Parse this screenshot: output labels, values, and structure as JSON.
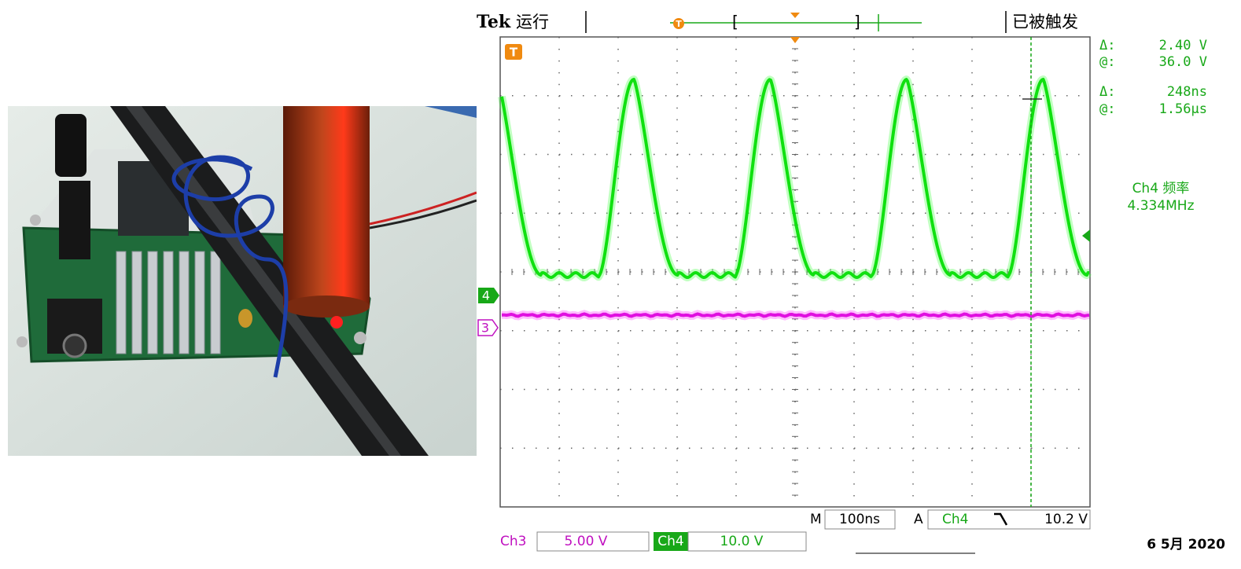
{
  "header": {
    "brand": "Tek",
    "status": "运行",
    "trigger_state": "已被触发"
  },
  "trigger_marker": "T",
  "cursors": [
    {
      "label": "Δ:",
      "value": "2.40 V"
    },
    {
      "label": "@:",
      "value": "36.0 V"
    },
    {
      "label": "Δ:",
      "value": "248ns"
    },
    {
      "label": "@:",
      "value": "1.56µs"
    }
  ],
  "measurement": {
    "name": "Ch4 频率",
    "value": "4.334MHz"
  },
  "channel_markers": {
    "ch4": "4",
    "ch3": "3"
  },
  "timebase": {
    "prefix": "M",
    "value": "100ns"
  },
  "trigger": {
    "prefix": "A",
    "source": "Ch4",
    "level": "10.2 V"
  },
  "channels": [
    {
      "name": "Ch3",
      "scale": "5.00 V"
    },
    {
      "name": "Ch4",
      "scale": "10.0 V"
    }
  ],
  "date": "6 5月 2020"
}
